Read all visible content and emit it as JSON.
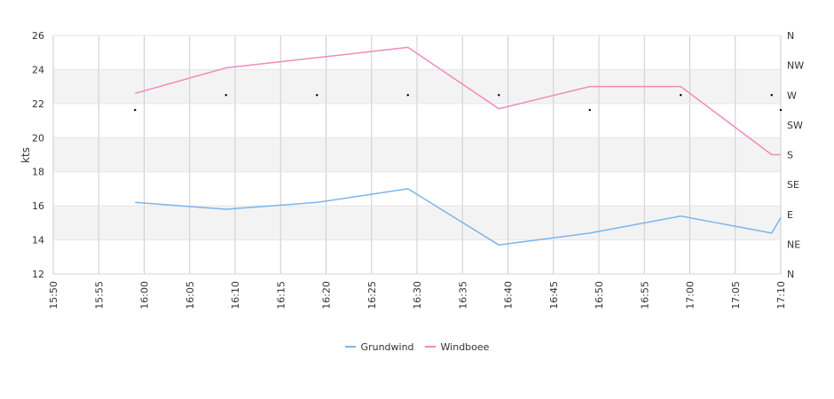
{
  "chart_data": {
    "type": "line",
    "ylabel": "kts",
    "ylim": [
      12,
      26
    ],
    "y_ticks": [
      "12",
      "14",
      "16",
      "18",
      "20",
      "22",
      "24",
      "26"
    ],
    "x_ticks": [
      "15:50",
      "15:55",
      "16:00",
      "16:05",
      "16:10",
      "16:15",
      "16:20",
      "16:25",
      "16:30",
      "16:35",
      "16:40",
      "16:45",
      "16:50",
      "16:55",
      "17:00",
      "17:05",
      "17:10"
    ],
    "xlim": [
      "15:50",
      "17:10"
    ],
    "direction_ticks": [
      "N",
      "NE",
      "E",
      "SE",
      "S",
      "SW",
      "W",
      "NW",
      "N"
    ],
    "direction_axis_range": [
      0,
      360
    ],
    "series": [
      {
        "name": "Grundwind",
        "color": "#7cb5ec",
        "x": [
          "15:59",
          "16:09",
          "16:19",
          "16:29",
          "16:39",
          "16:49",
          "16:59",
          "17:09",
          "17:10"
        ],
        "values": [
          16.2,
          15.8,
          16.2,
          17.0,
          13.7,
          14.4,
          15.4,
          14.4,
          15.3
        ]
      },
      {
        "name": "Windboee",
        "color": "#f08bbe",
        "x": [
          "15:59",
          "16:09",
          "16:19",
          "16:29",
          "16:39",
          "16:49",
          "16:59",
          "17:09",
          "17:10"
        ],
        "values": [
          22.6,
          24.1,
          24.7,
          25.3,
          21.7,
          23.0,
          23.0,
          19.0,
          19.0
        ]
      }
    ],
    "direction_markers": {
      "x": [
        "15:59",
        "16:09",
        "16:19",
        "16:29",
        "16:39",
        "16:49",
        "16:59",
        "17:09",
        "17:10"
      ],
      "degrees": [
        247.5,
        270,
        270,
        270,
        270,
        247.5,
        270,
        270,
        247.5
      ]
    },
    "grid": true,
    "legend_position": "bottom-center"
  }
}
